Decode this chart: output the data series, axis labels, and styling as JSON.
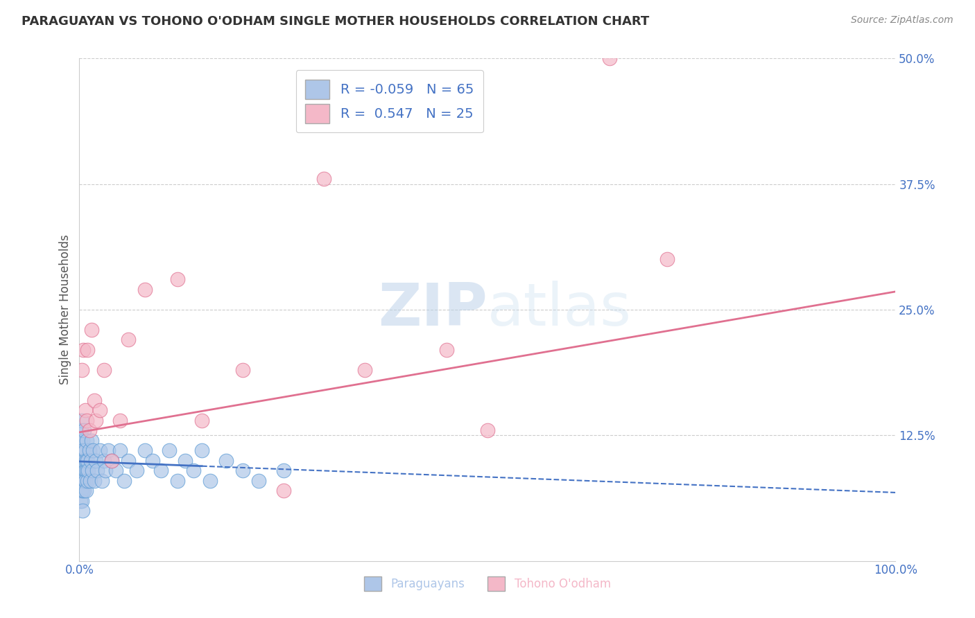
{
  "title": "PARAGUAYAN VS TOHONO O'ODHAM SINGLE MOTHER HOUSEHOLDS CORRELATION CHART",
  "source": "Source: ZipAtlas.com",
  "ylabel": "Single Mother Households",
  "xlim": [
    0,
    1.0
  ],
  "ylim": [
    0,
    0.5
  ],
  "xtick_labels": [
    "0.0%",
    "100.0%"
  ],
  "ytick_labels": [
    "",
    "12.5%",
    "25.0%",
    "37.5%",
    "50.0%"
  ],
  "r_blue": -0.059,
  "n_blue": 65,
  "r_pink": 0.547,
  "n_pink": 25,
  "blue_color": "#aec6e8",
  "blue_edge_color": "#5b9bd5",
  "pink_color": "#f4b8c8",
  "pink_edge_color": "#e07090",
  "blue_line_color": "#4472c4",
  "pink_line_color": "#e07090",
  "legend_text_color": "#4472c4",
  "grid_color": "#cccccc",
  "blue_scatter_x": [
    0.001,
    0.001,
    0.001,
    0.002,
    0.002,
    0.002,
    0.002,
    0.003,
    0.003,
    0.003,
    0.003,
    0.003,
    0.004,
    0.004,
    0.004,
    0.004,
    0.005,
    0.005,
    0.005,
    0.006,
    0.006,
    0.006,
    0.007,
    0.007,
    0.007,
    0.008,
    0.008,
    0.009,
    0.009,
    0.01,
    0.01,
    0.011,
    0.012,
    0.013,
    0.014,
    0.015,
    0.016,
    0.017,
    0.018,
    0.02,
    0.022,
    0.025,
    0.028,
    0.03,
    0.032,
    0.035,
    0.04,
    0.045,
    0.05,
    0.055,
    0.06,
    0.07,
    0.08,
    0.09,
    0.1,
    0.11,
    0.12,
    0.13,
    0.14,
    0.15,
    0.16,
    0.18,
    0.2,
    0.22,
    0.25
  ],
  "blue_scatter_y": [
    0.06,
    0.09,
    0.12,
    0.07,
    0.1,
    0.13,
    0.08,
    0.11,
    0.09,
    0.06,
    0.08,
    0.14,
    0.1,
    0.07,
    0.12,
    0.05,
    0.09,
    0.11,
    0.08,
    0.1,
    0.07,
    0.13,
    0.09,
    0.08,
    0.11,
    0.1,
    0.07,
    0.09,
    0.12,
    0.08,
    0.1,
    0.09,
    0.11,
    0.08,
    0.1,
    0.12,
    0.09,
    0.11,
    0.08,
    0.1,
    0.09,
    0.11,
    0.08,
    0.1,
    0.09,
    0.11,
    0.1,
    0.09,
    0.11,
    0.08,
    0.1,
    0.09,
    0.11,
    0.1,
    0.09,
    0.11,
    0.08,
    0.1,
    0.09,
    0.11,
    0.08,
    0.1,
    0.09,
    0.08,
    0.09
  ],
  "pink_scatter_x": [
    0.003,
    0.005,
    0.007,
    0.009,
    0.01,
    0.012,
    0.015,
    0.018,
    0.02,
    0.025,
    0.03,
    0.04,
    0.05,
    0.06,
    0.08,
    0.12,
    0.15,
    0.2,
    0.25,
    0.3,
    0.35,
    0.45,
    0.5,
    0.65,
    0.72
  ],
  "pink_scatter_y": [
    0.19,
    0.21,
    0.15,
    0.14,
    0.21,
    0.13,
    0.23,
    0.16,
    0.14,
    0.15,
    0.19,
    0.1,
    0.14,
    0.22,
    0.27,
    0.28,
    0.14,
    0.19,
    0.07,
    0.38,
    0.19,
    0.21,
    0.13,
    0.5,
    0.3
  ],
  "blue_line_start_x": 0.0,
  "blue_line_end_x": 1.0,
  "blue_line_start_y": 0.099,
  "blue_line_end_y": 0.068,
  "pink_line_start_x": 0.0,
  "pink_line_end_x": 1.0,
  "pink_line_start_y": 0.128,
  "pink_line_end_y": 0.268
}
